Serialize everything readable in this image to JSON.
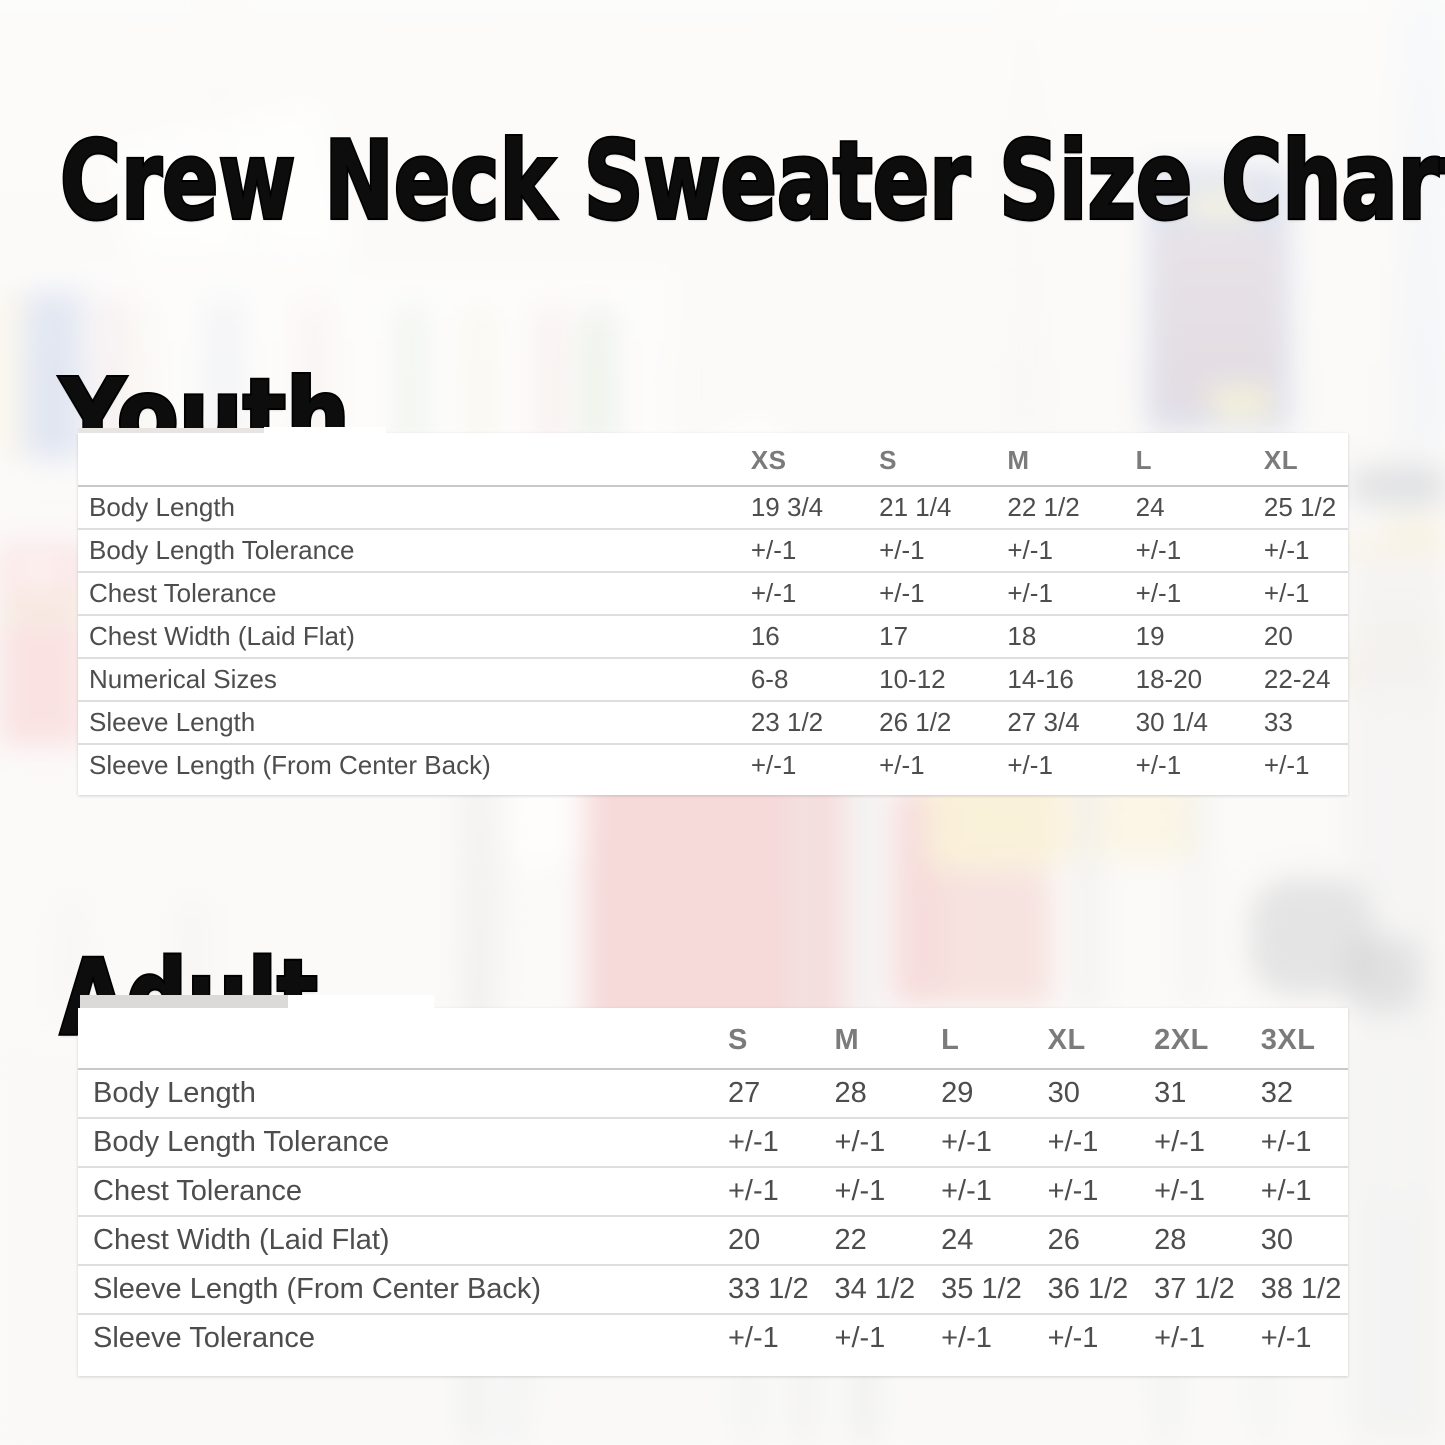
{
  "title": "Crew Neck Sweater Size Chart",
  "sections": {
    "youth": {
      "heading": "Youth",
      "table": {
        "columns": [
          "XS",
          "S",
          "M",
          "L",
          "XL"
        ],
        "rows": [
          {
            "label": "Body Length",
            "values": [
              "19 3/4",
              "21 1/4",
              "22 1/2",
              "24",
              "25 1/2"
            ]
          },
          {
            "label": "Body Length Tolerance",
            "values": [
              "+/-1",
              "+/-1",
              "+/-1",
              "+/-1",
              "+/-1"
            ]
          },
          {
            "label": "Chest Tolerance",
            "values": [
              "+/-1",
              "+/-1",
              "+/-1",
              "+/-1",
              "+/-1"
            ]
          },
          {
            "label": "Chest Width (Laid Flat)",
            "values": [
              "16",
              "17",
              "18",
              "19",
              "20"
            ]
          },
          {
            "label": "Numerical Sizes",
            "values": [
              "6-8",
              "10-12",
              "14-16",
              "18-20",
              "22-24"
            ]
          },
          {
            "label": "Sleeve Length",
            "values": [
              "23 1/2",
              "26 1/2",
              "27 3/4",
              "30 1/4",
              "33"
            ]
          },
          {
            "label": "Sleeve Length (From Center Back)",
            "values": [
              "+/-1",
              "+/-1",
              "+/-1",
              "+/-1",
              "+/-1"
            ]
          }
        ]
      }
    },
    "adult": {
      "heading": "Adult",
      "table": {
        "columns": [
          "S",
          "M",
          "L",
          "XL",
          "2XL",
          "3XL"
        ],
        "rows": [
          {
            "label": "Body Length",
            "values": [
              "27",
              "28",
              "29",
              "30",
              "31",
              "32"
            ]
          },
          {
            "label": "Body Length Tolerance",
            "values": [
              "+/-1",
              "+/-1",
              "+/-1",
              "+/-1",
              "+/-1",
              "+/-1"
            ]
          },
          {
            "label": "Chest Tolerance",
            "values": [
              "+/-1",
              "+/-1",
              "+/-1",
              "+/-1",
              "+/-1",
              "+/-1"
            ]
          },
          {
            "label": "Chest Width (Laid Flat)",
            "values": [
              "20",
              "22",
              "24",
              "26",
              "28",
              "30"
            ]
          },
          {
            "label": "Sleeve Length (From Center Back)",
            "values": [
              "33 1/2",
              "34 1/2",
              "35 1/2",
              "36 1/2",
              "37 1/2",
              "38 1/2"
            ]
          },
          {
            "label": "Sleeve Tolerance",
            "values": [
              "+/-1",
              "+/-1",
              "+/-1",
              "+/-1",
              "+/-1",
              "+/-1"
            ]
          }
        ]
      }
    }
  },
  "colors": {
    "heading_text": "#0d0d0d",
    "table_cell_text": "#4d4d4d",
    "table_header_text": "#7b7b7b",
    "card_background": "#ffffff",
    "row_divider": "#dedede"
  }
}
